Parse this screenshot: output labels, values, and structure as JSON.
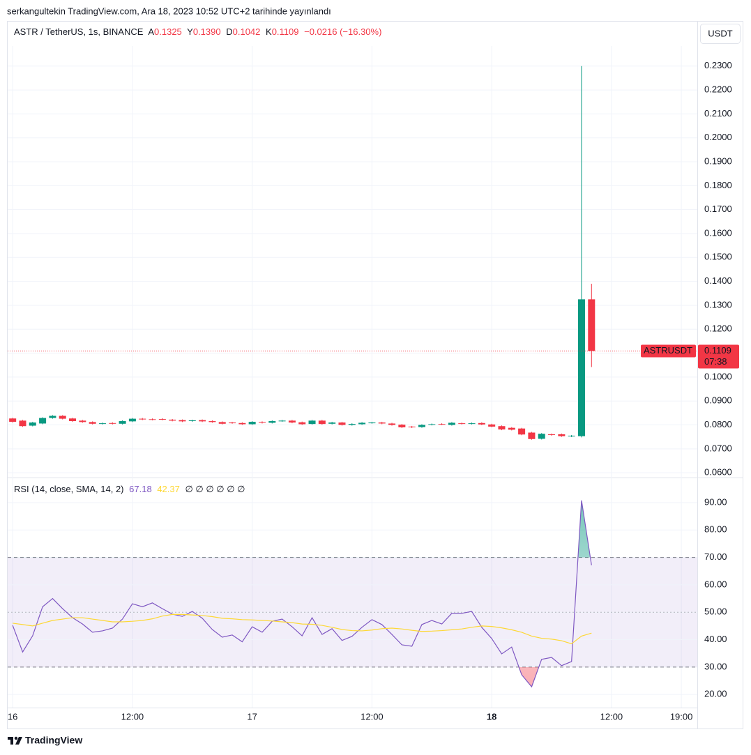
{
  "header": "serkangultekin TradingView.com, Ara 18, 2023 10:52 UTC+2 tarihinde yayınlandı",
  "currency_button": "USDT",
  "footer_brand": "TradingView",
  "chart_data": [
    {
      "type": "candlestick",
      "symbol": "ASTR / TetherUS, 1s, BINANCE",
      "legend": [
        {
          "label": "A",
          "value": "0.1325"
        },
        {
          "label": "Y",
          "value": "0.1390"
        },
        {
          "label": "D",
          "value": "0.1042"
        },
        {
          "label": "K",
          "value": "0.1109"
        }
      ],
      "change": "−0.0216 (−16.30%)",
      "last_price_symbol": "ASTRUSDT",
      "countdown": "07:38",
      "up_color": "#089981",
      "down_color": "#f23645",
      "x": [
        0,
        1,
        2,
        3,
        4,
        5,
        6,
        7,
        8,
        9,
        10,
        11,
        12,
        13,
        14,
        15,
        16,
        17,
        18,
        19,
        20,
        21,
        22,
        23,
        24,
        25,
        26,
        27,
        28,
        29,
        30,
        31,
        32,
        33,
        34,
        35,
        36,
        37,
        38,
        39,
        40,
        41,
        42,
        43,
        44,
        45,
        46,
        47,
        48,
        49,
        50,
        51,
        52,
        53,
        54,
        55,
        56,
        57,
        58
      ],
      "open": [
        0.0827,
        0.0818,
        0.0797,
        0.0806,
        0.0829,
        0.0838,
        0.0827,
        0.0818,
        0.0812,
        0.0805,
        0.0808,
        0.0805,
        0.0815,
        0.0826,
        0.0824,
        0.0825,
        0.0822,
        0.082,
        0.0816,
        0.082,
        0.0816,
        0.0812,
        0.081,
        0.0808,
        0.0803,
        0.0812,
        0.0809,
        0.0816,
        0.0818,
        0.0811,
        0.0804,
        0.0818,
        0.0805,
        0.081,
        0.08,
        0.0803,
        0.0808,
        0.081,
        0.0806,
        0.0801,
        0.0793,
        0.0791,
        0.0801,
        0.0804,
        0.08,
        0.0807,
        0.0805,
        0.0808,
        0.0802,
        0.0795,
        0.0788,
        0.0785,
        0.0768,
        0.0742,
        0.0761,
        0.0761,
        0.0752,
        0.0753,
        0.1325
      ],
      "high": [
        0.083,
        0.0821,
        0.0813,
        0.0832,
        0.0841,
        0.0841,
        0.083,
        0.0821,
        0.0815,
        0.081,
        0.0811,
        0.0819,
        0.0829,
        0.0829,
        0.0827,
        0.0828,
        0.0825,
        0.0823,
        0.0822,
        0.0823,
        0.0819,
        0.0815,
        0.0813,
        0.0811,
        0.0816,
        0.0815,
        0.0819,
        0.0821,
        0.0821,
        0.0814,
        0.0821,
        0.0821,
        0.0813,
        0.0813,
        0.0807,
        0.0812,
        0.0813,
        0.0813,
        0.0809,
        0.0804,
        0.0796,
        0.0803,
        0.0806,
        0.0807,
        0.0812,
        0.081,
        0.081,
        0.0811,
        0.0805,
        0.0798,
        0.0791,
        0.0788,
        0.0771,
        0.0766,
        0.0764,
        0.0764,
        0.0758,
        0.23,
        0.139
      ],
      "low": [
        0.081,
        0.0792,
        0.0794,
        0.0803,
        0.0826,
        0.0823,
        0.0813,
        0.0809,
        0.0802,
        0.0802,
        0.0802,
        0.0802,
        0.0812,
        0.082,
        0.0819,
        0.0819,
        0.0815,
        0.0812,
        0.0813,
        0.0812,
        0.0809,
        0.0802,
        0.0805,
        0.08,
        0.08,
        0.0806,
        0.0806,
        0.0813,
        0.0807,
        0.08,
        0.0801,
        0.0801,
        0.0802,
        0.0797,
        0.0797,
        0.08,
        0.0805,
        0.0803,
        0.0797,
        0.0787,
        0.0787,
        0.0788,
        0.0798,
        0.0799,
        0.0797,
        0.0802,
        0.0802,
        0.0799,
        0.079,
        0.0778,
        0.0777,
        0.0757,
        0.0738,
        0.0739,
        0.0755,
        0.075,
        0.0749,
        0.0748,
        0.1042
      ],
      "close": [
        0.0813,
        0.0795,
        0.081,
        0.0829,
        0.0838,
        0.0826,
        0.0816,
        0.0812,
        0.0805,
        0.0807,
        0.0805,
        0.0816,
        0.0826,
        0.0823,
        0.0822,
        0.0822,
        0.0818,
        0.0815,
        0.0819,
        0.0815,
        0.0812,
        0.0805,
        0.0808,
        0.0803,
        0.0813,
        0.0809,
        0.0816,
        0.0818,
        0.081,
        0.0803,
        0.0818,
        0.0804,
        0.081,
        0.08,
        0.0804,
        0.0809,
        0.081,
        0.0806,
        0.08,
        0.079,
        0.079,
        0.08,
        0.0803,
        0.0802,
        0.0809,
        0.0805,
        0.0807,
        0.0802,
        0.0793,
        0.0781,
        0.078,
        0.076,
        0.0741,
        0.0763,
        0.0758,
        0.0753,
        0.0755,
        0.1325,
        0.1109
      ],
      "xlim": [
        -0.5,
        68.6
      ],
      "ylim": [
        0.0583,
        0.2378
      ],
      "yticks": [
        {
          "value": 0.06,
          "label": "0.0600"
        },
        {
          "value": 0.07,
          "label": "0.0700"
        },
        {
          "value": 0.08,
          "label": "0.0800"
        },
        {
          "value": 0.09,
          "label": "0.0900"
        },
        {
          "value": 0.1,
          "label": "0.1000"
        },
        {
          "value": 0.11,
          "label": "0.1100"
        },
        {
          "value": 0.12,
          "label": "0.1200"
        },
        {
          "value": 0.13,
          "label": "0.1300"
        },
        {
          "value": 0.14,
          "label": "0.1400"
        },
        {
          "value": 0.15,
          "label": "0.1500"
        },
        {
          "value": 0.16,
          "label": "0.1600"
        },
        {
          "value": 0.17,
          "label": "0.1700"
        },
        {
          "value": 0.18,
          "label": "0.1800"
        },
        {
          "value": 0.19,
          "label": "0.1900"
        },
        {
          "value": 0.2,
          "label": "0.2000"
        },
        {
          "value": 0.21,
          "label": "0.2100"
        },
        {
          "value": 0.22,
          "label": "0.2200"
        },
        {
          "value": 0.23,
          "label": "0.2300"
        }
      ],
      "xticks": [
        {
          "value": 0,
          "label": "16"
        },
        {
          "value": 12,
          "label": "12:00"
        },
        {
          "value": 24,
          "label": "17"
        },
        {
          "value": 36,
          "label": "12:00"
        },
        {
          "value": 48,
          "label": "18"
        },
        {
          "value": 60,
          "label": "12:00"
        },
        {
          "value": 67,
          "label": "19:00"
        }
      ],
      "grid": true
    },
    {
      "type": "line",
      "title": "RSI (14, close, SMA, 14, 2)",
      "legend_extra": "∅ ∅ ∅ ∅ ∅ ∅",
      "x": [
        0,
        1,
        2,
        3,
        4,
        5,
        6,
        7,
        8,
        9,
        10,
        11,
        12,
        13,
        14,
        15,
        16,
        17,
        18,
        19,
        20,
        21,
        22,
        23,
        24,
        25,
        26,
        27,
        28,
        29,
        30,
        31,
        32,
        33,
        34,
        35,
        36,
        37,
        38,
        39,
        40,
        41,
        42,
        43,
        44,
        45,
        46,
        47,
        48,
        49,
        50,
        51,
        52,
        53,
        54,
        55,
        56,
        57,
        58
      ],
      "series": [
        {
          "color": "#7e57c2",
          "values": [
            45.2,
            35.5,
            41.4,
            52,
            55,
            51.3,
            48,
            45.7,
            42.7,
            43.2,
            44.2,
            47.5,
            53.1,
            52,
            53.4,
            51.3,
            49.3,
            48.5,
            50.3,
            47.8,
            43.7,
            40.9,
            41.7,
            39.2,
            44.7,
            42.7,
            46.7,
            47.5,
            44.7,
            41.4,
            48,
            41.9,
            44,
            39.7,
            41.2,
            44.5,
            47.3,
            45.5,
            41.9,
            38.1,
            37.6,
            45.5,
            47,
            45.7,
            49.6,
            49.6,
            50.3,
            44.5,
            40.4,
            34.8,
            37.3,
            27.2,
            22.8,
            32.8,
            33.5,
            30.5,
            32,
            90.8,
            67.18
          ]
        },
        {
          "color": "#fdd835",
          "values": [
            46,
            45.5,
            45,
            46,
            47,
            47.5,
            48,
            48,
            47.5,
            47,
            46.5,
            46.5,
            46.7,
            47,
            47.6,
            48.6,
            49.2,
            49.2,
            49,
            48.8,
            48.4,
            47.8,
            47.6,
            47.3,
            47.2,
            47,
            46.8,
            46.5,
            46.2,
            45.7,
            45.6,
            45.2,
            44.5,
            43.7,
            43.3,
            43.2,
            43.5,
            44,
            44.2,
            43.9,
            43.4,
            43,
            43.1,
            43.3,
            43.6,
            43.9,
            44.5,
            45,
            44.8,
            44.3,
            43.6,
            42.7,
            41.3,
            40.5,
            40.2,
            39.6,
            38.5,
            41.3,
            42.37
          ]
        }
      ],
      "upper_band": 70,
      "middle_band": 50,
      "lower_band": 30,
      "band_color": "#7e57c2",
      "xlim": [
        -0.5,
        68.6
      ],
      "ylim": [
        15.2,
        98.9
      ],
      "yticks": [
        {
          "value": 20,
          "label": "20.00"
        },
        {
          "value": 30,
          "label": "30.00"
        },
        {
          "value": 40,
          "label": "40.00"
        },
        {
          "value": 50,
          "label": "50.00"
        },
        {
          "value": 60,
          "label": "60.00"
        },
        {
          "value": 70,
          "label": "70.00"
        },
        {
          "value": 80,
          "label": "80.00"
        },
        {
          "value": 90,
          "label": "90.00"
        }
      ],
      "grid": true
    }
  ]
}
